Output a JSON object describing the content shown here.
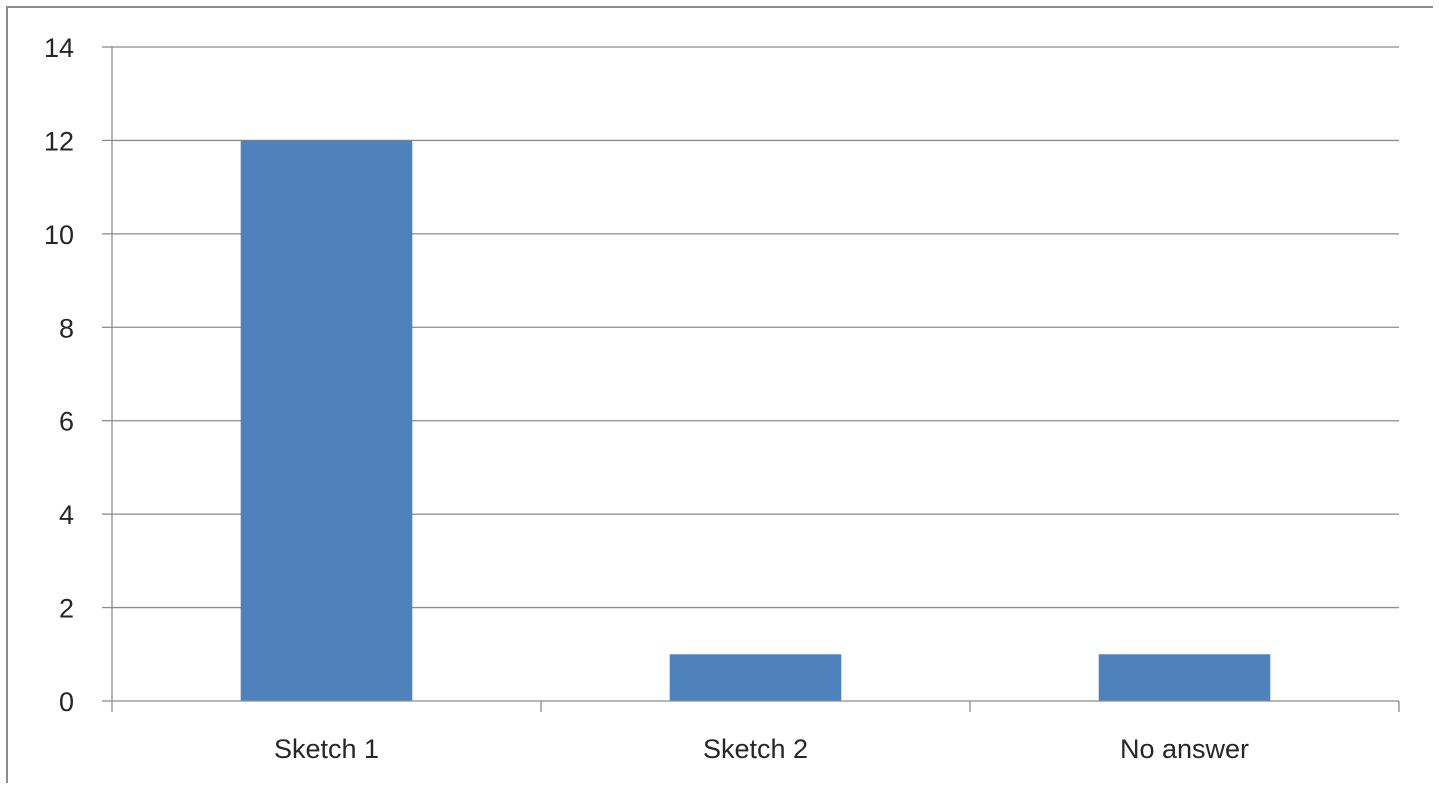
{
  "chart_data": {
    "type": "bar",
    "title": "",
    "xlabel": "",
    "ylabel": "",
    "categories": [
      "Sketch 1",
      "Sketch 2",
      "No answer"
    ],
    "series": [
      {
        "values": [
          12,
          1,
          1
        ]
      }
    ],
    "ylim": [
      0,
      14
    ],
    "yticks": [
      0,
      2,
      4,
      6,
      8,
      10,
      12,
      14
    ],
    "grid": true,
    "legend": "none",
    "colors": {
      "bar": "#4f81bd",
      "grid": "#8c8c8c",
      "text": "#262626"
    }
  }
}
